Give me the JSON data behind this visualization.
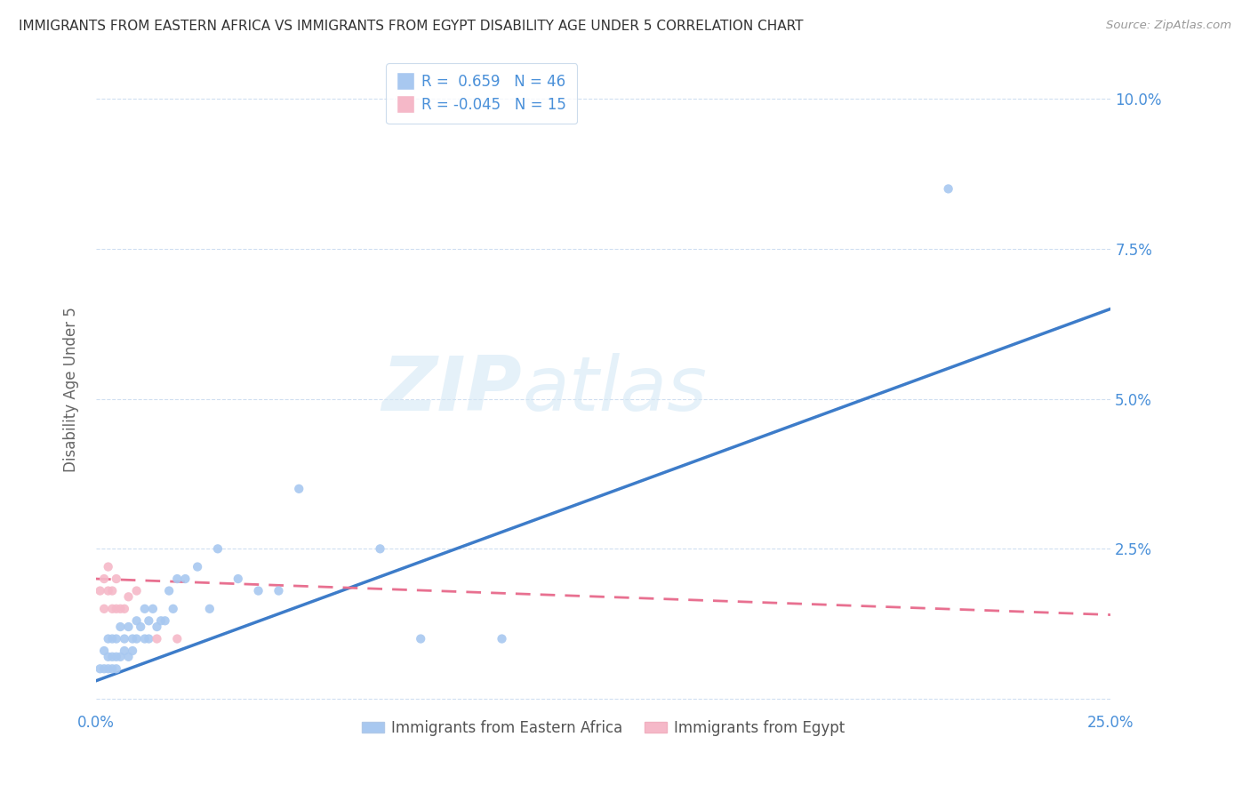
{
  "title": "IMMIGRANTS FROM EASTERN AFRICA VS IMMIGRANTS FROM EGYPT DISABILITY AGE UNDER 5 CORRELATION CHART",
  "source": "Source: ZipAtlas.com",
  "ylabel": "Disability Age Under 5",
  "xlim": [
    0.0,
    0.25
  ],
  "ylim": [
    -0.002,
    0.105
  ],
  "xticks": [
    0.0,
    0.05,
    0.1,
    0.15,
    0.2,
    0.25
  ],
  "yticks": [
    0.0,
    0.025,
    0.05,
    0.075,
    0.1
  ],
  "color_eastern": "#a8c8f0",
  "color_egypt": "#f5b8c8",
  "color_line_eastern": "#3d7cc9",
  "color_line_egypt": "#e87090",
  "eastern_africa_x": [
    0.001,
    0.002,
    0.002,
    0.003,
    0.003,
    0.003,
    0.004,
    0.004,
    0.004,
    0.005,
    0.005,
    0.005,
    0.006,
    0.006,
    0.007,
    0.007,
    0.008,
    0.008,
    0.009,
    0.009,
    0.01,
    0.01,
    0.011,
    0.012,
    0.012,
    0.013,
    0.013,
    0.014,
    0.015,
    0.016,
    0.017,
    0.018,
    0.019,
    0.02,
    0.022,
    0.025,
    0.028,
    0.03,
    0.035,
    0.04,
    0.045,
    0.05,
    0.07,
    0.08,
    0.1,
    0.21
  ],
  "eastern_africa_y": [
    0.005,
    0.005,
    0.008,
    0.005,
    0.007,
    0.01,
    0.005,
    0.007,
    0.01,
    0.005,
    0.007,
    0.01,
    0.007,
    0.012,
    0.008,
    0.01,
    0.007,
    0.012,
    0.008,
    0.01,
    0.01,
    0.013,
    0.012,
    0.01,
    0.015,
    0.01,
    0.013,
    0.015,
    0.012,
    0.013,
    0.013,
    0.018,
    0.015,
    0.02,
    0.02,
    0.022,
    0.015,
    0.025,
    0.02,
    0.018,
    0.018,
    0.035,
    0.025,
    0.01,
    0.01,
    0.085
  ],
  "egypt_x": [
    0.001,
    0.002,
    0.002,
    0.003,
    0.003,
    0.004,
    0.004,
    0.005,
    0.005,
    0.006,
    0.007,
    0.008,
    0.01,
    0.015,
    0.02
  ],
  "egypt_y": [
    0.018,
    0.015,
    0.02,
    0.018,
    0.022,
    0.015,
    0.018,
    0.015,
    0.02,
    0.015,
    0.015,
    0.017,
    0.018,
    0.01,
    0.01
  ],
  "line_ea_x0": 0.0,
  "line_ea_y0": 0.003,
  "line_ea_x1": 0.25,
  "line_ea_y1": 0.065,
  "line_eg_x0": 0.0,
  "line_eg_y0": 0.02,
  "line_eg_x1": 0.25,
  "line_eg_y1": 0.014
}
